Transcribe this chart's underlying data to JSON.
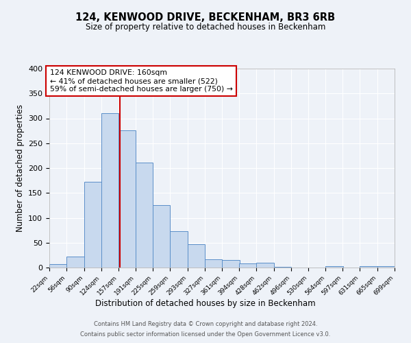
{
  "title": "124, KENWOOD DRIVE, BECKENHAM, BR3 6RB",
  "subtitle": "Size of property relative to detached houses in Beckenham",
  "bar_values": [
    7,
    22,
    173,
    311,
    276,
    211,
    126,
    73,
    47,
    16,
    15,
    8,
    9,
    2,
    0,
    0,
    3,
    0,
    3,
    3
  ],
  "bin_starts": [
    22,
    56,
    90,
    124,
    157,
    191,
    225,
    259,
    293,
    327,
    361,
    394,
    428,
    462,
    496,
    530,
    564,
    597,
    631,
    665
  ],
  "bin_width": 34,
  "tick_labels": [
    "22sqm",
    "56sqm",
    "90sqm",
    "124sqm",
    "157sqm",
    "191sqm",
    "225sqm",
    "259sqm",
    "293sqm",
    "327sqm",
    "361sqm",
    "394sqm",
    "428sqm",
    "462sqm",
    "496sqm",
    "530sqm",
    "564sqm",
    "597sqm",
    "631sqm",
    "665sqm",
    "699sqm"
  ],
  "bar_color": "#c8d9ee",
  "bar_edge_color": "#5b8fc9",
  "vline_x": 160,
  "vline_color": "#cc0000",
  "ylabel": "Number of detached properties",
  "xlabel": "Distribution of detached houses by size in Beckenham",
  "ylim": [
    0,
    400
  ],
  "yticks": [
    0,
    50,
    100,
    150,
    200,
    250,
    300,
    350,
    400
  ],
  "annotation_line1": "124 KENWOOD DRIVE: 160sqm",
  "annotation_line2": "← 41% of detached houses are smaller (522)",
  "annotation_line3": "59% of semi-detached houses are larger (750) →",
  "box_facecolor": "#ffffff",
  "box_edgecolor": "#cc0000",
  "footer1": "Contains HM Land Registry data © Crown copyright and database right 2024.",
  "footer2": "Contains public sector information licensed under the Open Government Licence v3.0.",
  "bg_color": "#eef2f8",
  "grid_color": "#ffffff",
  "spine_color": "#aaaaaa"
}
